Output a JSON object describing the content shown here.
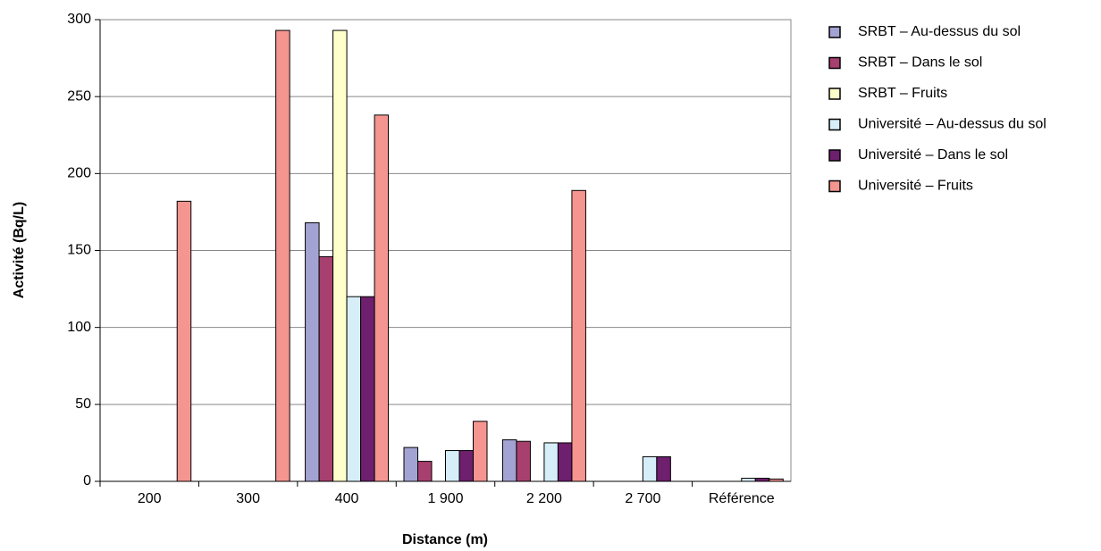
{
  "chart_data": {
    "type": "bar",
    "x_label": "Distance (m)",
    "y_label": "Activité (Bq/L)",
    "categories": [
      "200",
      "300",
      "400",
      "1 900",
      "2 200",
      "2 700",
      "Référence"
    ],
    "series": [
      {
        "name": "SRBT – Au-dessus du sol",
        "color": "#a3a3d3",
        "values": [
          null,
          null,
          168,
          22,
          27,
          null,
          null
        ]
      },
      {
        "name": "SRBT – Dans le sol",
        "color": "#a8406f",
        "values": [
          null,
          null,
          146,
          13,
          26,
          null,
          null
        ]
      },
      {
        "name": "SRBT – Fruits",
        "color": "#ffffcc",
        "values": [
          null,
          null,
          293,
          null,
          null,
          null,
          null
        ]
      },
      {
        "name": "Université – Au-dessus du sol",
        "color": "#d6eef7",
        "values": [
          null,
          null,
          120,
          20,
          25,
          16,
          2
        ]
      },
      {
        "name": "Université – Dans le sol",
        "color": "#6e1f6e",
        "values": [
          null,
          null,
          120,
          20,
          25,
          16,
          2
        ]
      },
      {
        "name": "Université – Fruits",
        "color": "#f59590",
        "values": [
          182,
          293,
          238,
          39,
          189,
          null,
          1.5
        ]
      }
    ],
    "ylim": [
      0,
      300
    ],
    "yticks": [
      0,
      50,
      100,
      150,
      200,
      250,
      300
    ],
    "grid": true
  }
}
